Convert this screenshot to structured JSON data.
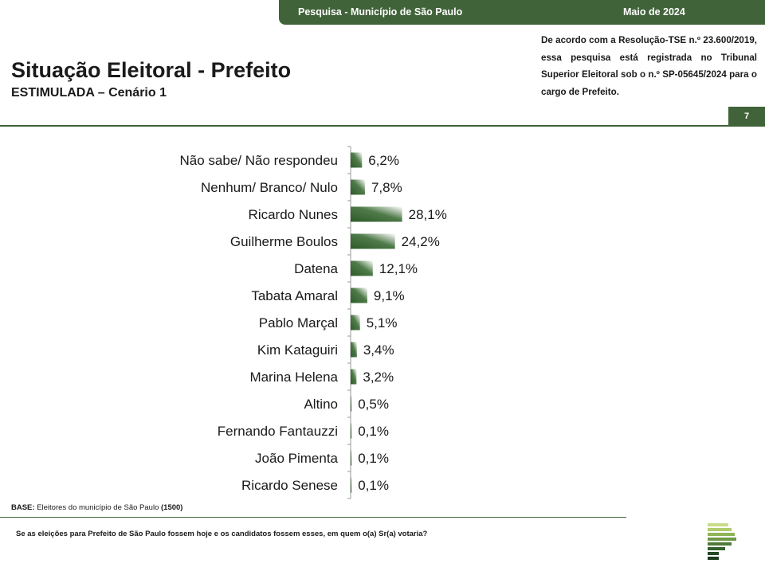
{
  "header": {
    "survey": "Pesquisa - Município de São Paulo",
    "date": "Maio de 2024",
    "page_number": "7"
  },
  "title": "Situação Eleitoral - Prefeito",
  "subtitle": "ESTIMULADA – Cenário 1",
  "legal_text": "De acordo com a Resolução-TSE n.º 23.600/2019, essa pesquisa está registrada no Tribunal Superior Eleitoral sob o n.º SP-05645/2024 para o cargo de Prefeito.",
  "base": {
    "label": "BASE:",
    "text": "Eleitores do município de São Paulo",
    "count": "(1500)"
  },
  "question": "Se as eleições para Prefeito de São Paulo fossem hoje e os candidatos fossem esses, em quem o(a) Sr(a) votaria?",
  "colors": {
    "brand_green": "#41633a",
    "bar_dark": "#2d5a2a",
    "bar_light": "#ffffff"
  },
  "chart_data": {
    "type": "bar",
    "orientation": "horizontal",
    "categories": [
      "Não sabe/ Não respondeu",
      "Nenhum/ Branco/ Nulo",
      "Ricardo Nunes",
      "Guilherme Boulos",
      "Datena",
      "Tabata Amaral",
      "Pablo Marçal",
      "Kim Kataguiri",
      "Marina Helena",
      "Altino",
      "Fernando Fantauzzi",
      "João Pimenta",
      "Ricardo Senese"
    ],
    "values": [
      6.2,
      7.8,
      28.1,
      24.2,
      12.1,
      9.1,
      5.1,
      3.4,
      3.2,
      0.5,
      0.1,
      0.1,
      0.1
    ],
    "value_labels": [
      "6,2%",
      "7,8%",
      "28,1%",
      "24,2%",
      "12,1%",
      "9,1%",
      "5,1%",
      "3,4%",
      "3,2%",
      "0,5%",
      "0,1%",
      "0,1%",
      "0,1%"
    ],
    "unit": "%",
    "grid": false,
    "legend": "none"
  }
}
